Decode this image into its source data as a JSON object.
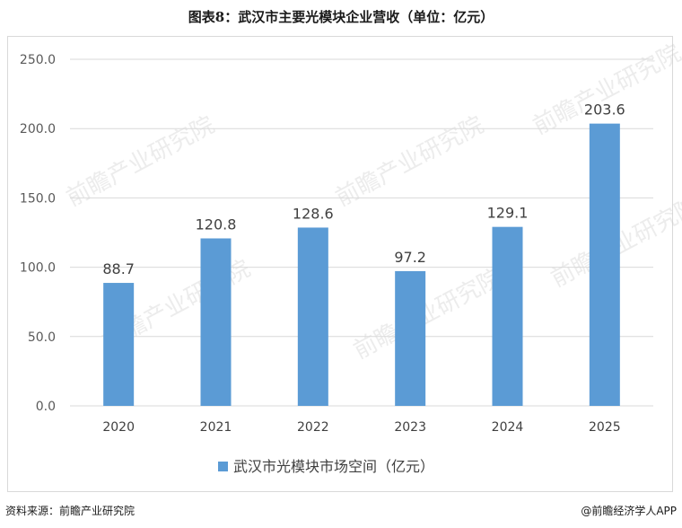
{
  "header": {
    "title": "图表8：武汉市主要光模块企业营收（单位：亿元）"
  },
  "footer": {
    "source": "资料来源：前瞻产业研究院",
    "brand": "@前瞻经济学人APP"
  },
  "chart_data": {
    "type": "bar",
    "categories": [
      "2020",
      "2021",
      "2022",
      "2023",
      "2024",
      "2025"
    ],
    "series": [
      {
        "name": "武汉市光模块市场空间（亿元）",
        "values": [
          88.7,
          120.8,
          128.6,
          97.2,
          129.1,
          203.6
        ],
        "labels": [
          "88.7",
          "120.8",
          "128.6",
          "97.2",
          "129.1",
          "203.6"
        ],
        "color": "#5b9bd5"
      }
    ],
    "yticks": [
      "0.0",
      "50.0",
      "100.0",
      "150.0",
      "200.0",
      "250.0"
    ],
    "ylim": [
      0,
      250
    ],
    "grid": true,
    "legend": "bottom",
    "watermark": "前瞻产业研究院"
  }
}
